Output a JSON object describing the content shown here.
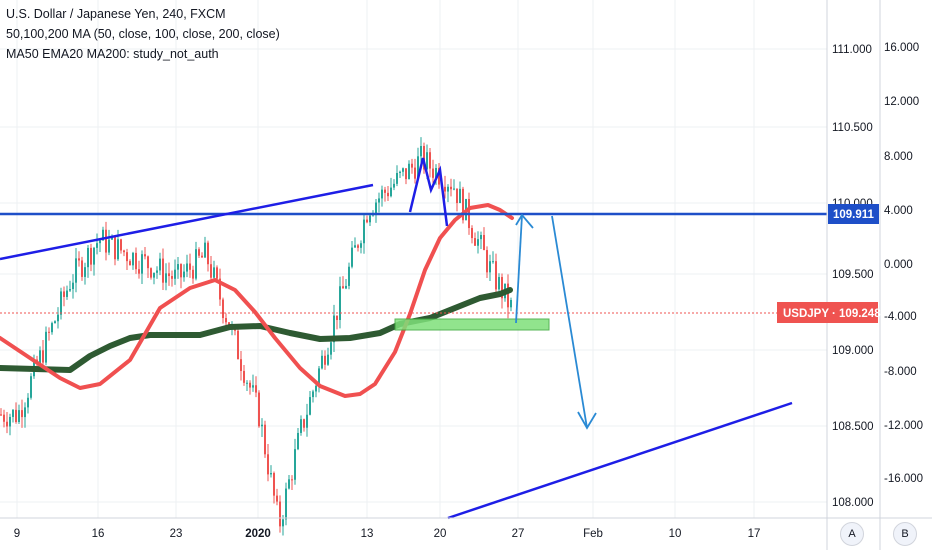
{
  "legend": {
    "symbol_line": "U.S. Dollar / Japanese Yen, 240, FXCM",
    "ma_line": "50,100,200 MA (50, close, 100, close, 200, close)",
    "study_line": "MA50 EMA20 MA200: study_not_auth"
  },
  "price_axis_labels": [
    "111.000",
    "110.500",
    "110.000",
    "109.500",
    "109.000",
    "108.500",
    "108.000"
  ],
  "indicator_axis_labels": [
    "16.000",
    "12.000",
    "8.000",
    "4.000",
    "0.000",
    "-4.000",
    "-8.000",
    "-12.000",
    "-16.000"
  ],
  "time_labels": [
    "9",
    "16",
    "23",
    "2020",
    "13",
    "20",
    "27",
    "Feb",
    "10",
    "17"
  ],
  "current_price_tag": "USDJPY · 109.248",
  "level_tag": "109.911",
  "corner_buttons": {
    "a": "A",
    "b": "B"
  },
  "colors": {
    "up_candle": "#26a69a",
    "down_candle": "#ef5350",
    "ma_fast": "#f05050",
    "ma_slow": "#2e5a32",
    "trendline": "#1e1ee6",
    "level_line": "#1e4fc8",
    "arrow": "#2a8ad4",
    "support_zone": "#7ee07a"
  },
  "chart_data": {
    "type": "candlestick",
    "symbol": "USDJPY",
    "timeframe": "240",
    "source": "FXCM",
    "ylim": [
      107.95,
      111.2
    ],
    "last_price": 109.248,
    "horizontal_level": 109.911,
    "key_prices": [
      {
        "date": "Dec 9",
        "close": 108.6
      },
      {
        "date": "Dec 13",
        "close": 109.45
      },
      {
        "date": "Dec 16",
        "close": 109.7
      },
      {
        "date": "Dec 23",
        "close": 109.45
      },
      {
        "date": "Dec 26",
        "close": 109.6
      },
      {
        "date": "Jan 2",
        "close": 108.6
      },
      {
        "date": "Jan 6",
        "close": 107.9
      },
      {
        "date": "Jan 8",
        "close": 108.5
      },
      {
        "date": "Jan 13",
        "close": 109.9
      },
      {
        "date": "Jan 17",
        "close": 110.2
      },
      {
        "date": "Jan 21",
        "close": 110.05
      },
      {
        "date": "Jan 24",
        "close": 109.5
      },
      {
        "date": "Jan 27",
        "close": 109.248
      }
    ]
  }
}
